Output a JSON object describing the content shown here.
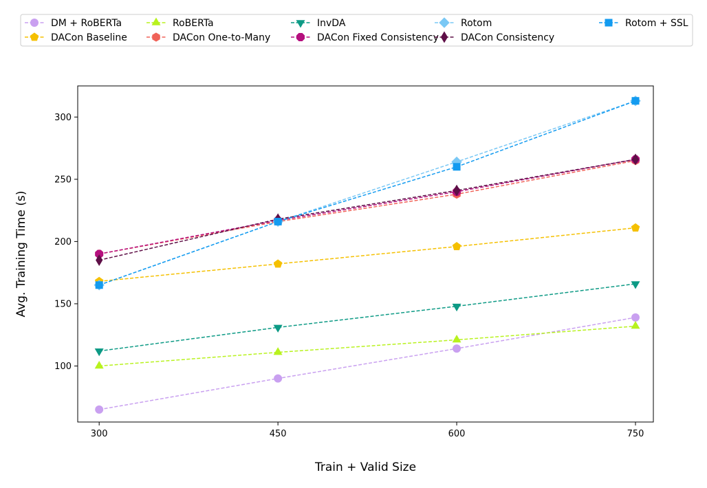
{
  "chart_data": {
    "type": "line",
    "title": "",
    "xlabel": "Train + Valid Size",
    "ylabel": "Avg. Training Time (s)",
    "x": [
      300,
      450,
      600,
      750
    ],
    "x_tick_labels": [
      "300",
      "450",
      "600",
      "750"
    ],
    "xlim": [
      282,
      765
    ],
    "ylim": [
      55,
      325
    ],
    "y_ticks": [
      100,
      150,
      200,
      250,
      300
    ],
    "y_tick_labels": [
      "100",
      "150",
      "200",
      "250",
      "300"
    ],
    "grid": false,
    "legend_position": "top",
    "legend_columns": 6,
    "series": [
      {
        "name": "DM + RoBERTa",
        "values": [
          65,
          90,
          114,
          139
        ],
        "color": "#c9a0f0",
        "marker": "circle",
        "linestyle": "dashed"
      },
      {
        "name": "DACon Baseline",
        "values": [
          168,
          182,
          196,
          211
        ],
        "color": "#f5c000",
        "marker": "pentagon",
        "linestyle": "dashed"
      },
      {
        "name": "RoBERTa",
        "values": [
          100,
          111,
          121,
          132
        ],
        "color": "#b8f21e",
        "marker": "triangle-up",
        "linestyle": "dashed"
      },
      {
        "name": "DACon One-to-Many",
        "values": [
          190,
          216,
          238,
          265
        ],
        "color": "#f06258",
        "marker": "hexagon",
        "linestyle": "dashed"
      },
      {
        "name": "InvDA",
        "values": [
          112,
          131,
          148,
          166
        ],
        "color": "#0d9a85",
        "marker": "triangle-down",
        "linestyle": "dashed"
      },
      {
        "name": "DACon Fixed Consistency",
        "values": [
          190,
          217,
          240,
          266
        ],
        "color": "#b5107e",
        "marker": "octagon",
        "linestyle": "dashed"
      },
      {
        "name": "Rotom",
        "values": [
          165,
          216,
          264,
          313
        ],
        "color": "#7ac8f5",
        "marker": "diamond",
        "linestyle": "dashed"
      },
      {
        "name": "DACon Consistency",
        "values": [
          185,
          218,
          241,
          266
        ],
        "color": "#5e0f47",
        "marker": "thin-diamond",
        "linestyle": "dashed"
      },
      {
        "name": "Rotom + SSL",
        "values": [
          165,
          216,
          260,
          313
        ],
        "color": "#139bf0",
        "marker": "square",
        "linestyle": "dashed"
      }
    ]
  }
}
